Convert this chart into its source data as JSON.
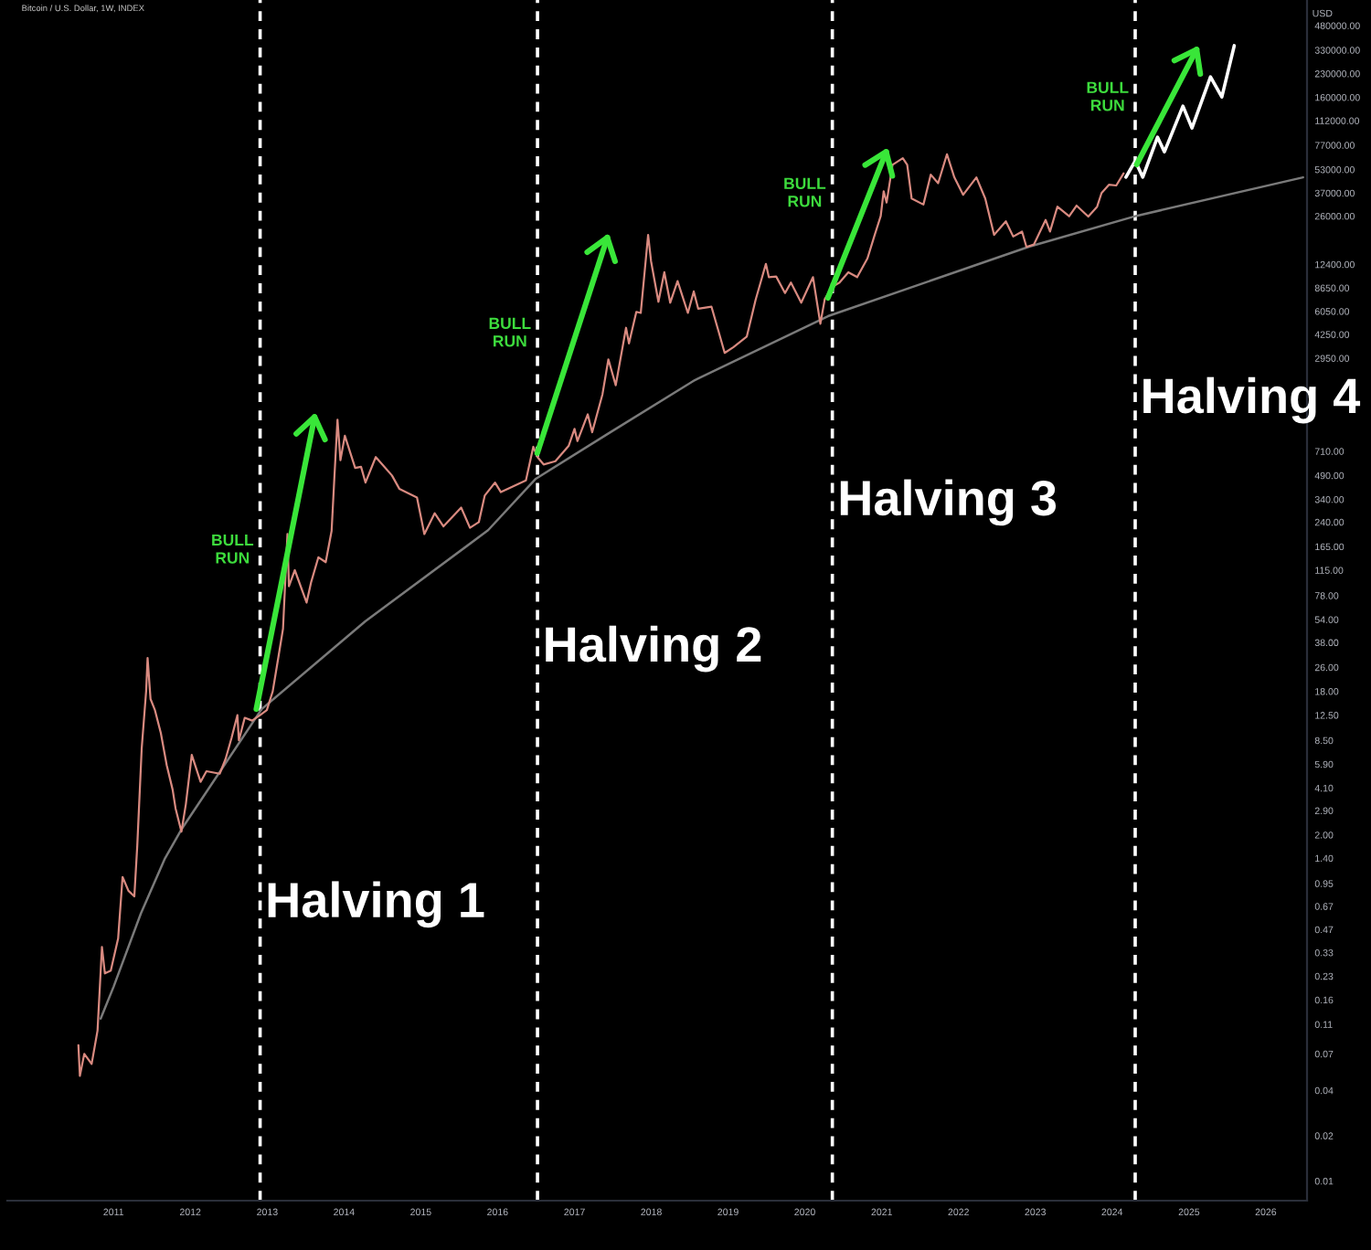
{
  "chart_data": {
    "type": "line",
    "title": "Bitcoin / U.S. Dollar, 1W, INDEX",
    "ylabel": "USD",
    "log": true,
    "xlim": [
      "2009-08-14",
      "2026-07-16"
    ],
    "xticks": [
      "2011",
      "2012",
      "2013",
      "2014",
      "2015",
      "2016",
      "2017",
      "2018",
      "2019",
      "2020",
      "2021",
      "2022",
      "2023",
      "2024",
      "2025",
      "2026"
    ],
    "ylim": [
      0.0074,
      710000
    ],
    "yticks": [
      {
        "value": 480000,
        "label": "480000.00"
      },
      {
        "value": 330000,
        "label": "330000.00"
      },
      {
        "value": 230000,
        "label": "230000.00"
      },
      {
        "value": 160000,
        "label": "160000.00"
      },
      {
        "value": 112000,
        "label": "112000.00"
      },
      {
        "value": 77000,
        "label": "77000.00"
      },
      {
        "value": 53000,
        "label": "53000.00"
      },
      {
        "value": 37000,
        "label": "37000.00"
      },
      {
        "value": 26000,
        "label": "26000.00"
      },
      {
        "value": 12400,
        "label": "12400.00"
      },
      {
        "value": 8650,
        "label": "8650.00"
      },
      {
        "value": 6050,
        "label": "6050.00"
      },
      {
        "value": 4250,
        "label": "4250.00"
      },
      {
        "value": 2950,
        "label": "2950.00"
      },
      {
        "value": 710,
        "label": "710.00"
      },
      {
        "value": 490,
        "label": "490.00"
      },
      {
        "value": 340,
        "label": "340.00"
      },
      {
        "value": 240,
        "label": "240.00"
      },
      {
        "value": 165,
        "label": "165.00"
      },
      {
        "value": 115,
        "label": "115.00"
      },
      {
        "value": 78,
        "label": "78.00"
      },
      {
        "value": 54,
        "label": "54.00"
      },
      {
        "value": 38,
        "label": "38.00"
      },
      {
        "value": 26,
        "label": "26.00"
      },
      {
        "value": 18,
        "label": "18.00"
      },
      {
        "value": 12.5,
        "label": "12.50"
      },
      {
        "value": 8.5,
        "label": "8.50"
      },
      {
        "value": 5.9,
        "label": "5.90"
      },
      {
        "value": 4.1,
        "label": "4.10"
      },
      {
        "value": 2.9,
        "label": "2.90"
      },
      {
        "value": 2,
        "label": "2.00"
      },
      {
        "value": 1.4,
        "label": "1.40"
      },
      {
        "value": 0.95,
        "label": "0.95"
      },
      {
        "value": 0.67,
        "label": "0.67"
      },
      {
        "value": 0.47,
        "label": "0.47"
      },
      {
        "value": 0.33,
        "label": "0.33"
      },
      {
        "value": 0.23,
        "label": "0.23"
      },
      {
        "value": 0.16,
        "label": "0.16"
      },
      {
        "value": 0.11,
        "label": "0.11"
      },
      {
        "value": 0.07,
        "label": "0.07"
      },
      {
        "value": 0.04,
        "label": "0.04"
      },
      {
        "value": 0.02,
        "label": "0.02"
      },
      {
        "value": 0.01,
        "label": "0.01"
      }
    ],
    "series": [
      {
        "color": "#d98a80",
        "x": [
          "2010-07-18",
          "2010-07-25",
          "2010-08-15",
          "2010-09-19",
          "2010-10-17",
          "2010-11-07",
          "2010-11-21",
          "2010-12-19",
          "2011-01-23",
          "2011-02-13",
          "2011-03-13",
          "2011-04-10",
          "2011-04-24",
          "2011-05-15",
          "2011-06-05",
          "2011-06-12",
          "2011-06-26",
          "2011-07-17",
          "2011-08-14",
          "2011-09-11",
          "2011-10-09",
          "2011-10-23",
          "2011-11-20",
          "2011-12-11",
          "2012-01-08",
          "2012-02-19",
          "2012-03-18",
          "2012-05-20",
          "2012-06-17",
          "2012-07-15",
          "2012-08-12",
          "2012-08-19",
          "2012-09-16",
          "2012-10-21",
          "2012-11-28",
          "2012-12-30",
          "2013-01-27",
          "2013-02-24",
          "2013-03-17",
          "2013-04-07",
          "2013-04-14",
          "2013-05-12",
          "2013-07-07",
          "2013-07-28",
          "2013-09-01",
          "2013-10-06",
          "2013-11-03",
          "2013-11-17",
          "2013-12-01",
          "2013-12-15",
          "2014-01-05",
          "2014-02-23",
          "2014-03-23",
          "2014-04-13",
          "2014-06-01",
          "2014-08-17",
          "2014-09-21",
          "2014-12-14",
          "2015-01-18",
          "2015-03-08",
          "2015-04-19",
          "2015-07-12",
          "2015-08-23",
          "2015-10-04",
          "2015-11-01",
          "2015-12-20",
          "2016-01-17",
          "2016-05-15",
          "2016-06-19",
          "2016-07-09",
          "2016-08-07",
          "2016-10-02",
          "2016-12-04",
          "2017-01-01",
          "2017-01-15",
          "2017-03-05",
          "2017-03-26",
          "2017-05-14",
          "2017-06-11",
          "2017-07-16",
          "2017-09-03",
          "2017-09-17",
          "2017-10-22",
          "2017-11-12",
          "2017-12-17",
          "2017-12-31",
          "2018-02-04",
          "2018-03-04",
          "2018-04-01",
          "2018-05-06",
          "2018-06-24",
          "2018-07-22",
          "2018-08-12",
          "2018-10-14",
          "2018-11-18",
          "2018-12-16",
          "2019-01-27",
          "2019-03-31",
          "2019-05-12",
          "2019-06-30",
          "2019-07-14",
          "2019-08-18",
          "2019-09-29",
          "2019-10-27",
          "2019-12-15",
          "2020-02-09",
          "2020-03-15",
          "2020-04-05",
          "2020-05-11",
          "2020-06-14",
          "2020-07-26",
          "2020-09-06",
          "2020-10-25",
          "2020-11-29",
          "2020-12-27",
          "2021-01-10",
          "2021-01-24",
          "2021-02-21",
          "2021-04-11",
          "2021-05-02",
          "2021-05-23",
          "2021-07-18",
          "2021-08-22",
          "2021-09-26",
          "2021-11-07",
          "2021-12-12",
          "2022-01-23",
          "2022-03-27",
          "2022-05-08",
          "2022-06-19",
          "2022-08-14",
          "2022-09-18",
          "2022-10-30",
          "2022-11-20",
          "2022-12-25",
          "2023-02-19",
          "2023-03-12",
          "2023-04-16",
          "2023-06-11",
          "2023-07-16",
          "2023-09-10",
          "2023-10-22",
          "2023-11-12",
          "2023-12-17",
          "2024-01-21",
          "2024-02-25"
        ],
        "values": [
          0.08,
          0.05,
          0.07,
          0.06,
          0.1,
          0.36,
          0.24,
          0.25,
          0.41,
          1.05,
          0.85,
          0.78,
          1.7,
          7.5,
          18,
          30,
          16,
          13.5,
          9.5,
          5.8,
          4,
          3,
          2.1,
          3.2,
          6.8,
          4.5,
          5.3,
          5.1,
          6.4,
          8.8,
          12.5,
          8.5,
          12,
          11.5,
          12.5,
          13.5,
          18,
          31,
          47,
          200,
          90,
          115,
          70,
          95,
          140,
          130,
          210,
          500,
          1150,
          620,
          900,
          550,
          560,
          440,
          650,
          490,
          400,
          350,
          200,
          275,
          225,
          300,
          220,
          240,
          360,
          440,
          380,
          455,
          760,
          650,
          580,
          610,
          770,
          1000,
          830,
          1250,
          950,
          1700,
          2900,
          1950,
          4700,
          3700,
          6000,
          5900,
          19500,
          13000,
          7000,
          11000,
          6900,
          9600,
          5900,
          8200,
          6300,
          6500,
          4400,
          3200,
          3500,
          4100,
          7200,
          12500,
          10200,
          10300,
          8000,
          9400,
          6900,
          10200,
          5000,
          7300,
          8800,
          9400,
          11000,
          10200,
          13600,
          19600,
          26000,
          38000,
          32000,
          57000,
          63000,
          57000,
          34000,
          31000,
          49000,
          43000,
          67000,
          47000,
          36000,
          47000,
          34000,
          19500,
          24000,
          19000,
          20500,
          16200,
          16800,
          24500,
          20500,
          30000,
          25900,
          30500,
          25800,
          30000,
          37000,
          42000,
          41500,
          50000
        ]
      },
      {
        "color": "#ffffff",
        "x": [
          "2024-03-07",
          "2024-04-20",
          "2024-05-26",
          "2024-08-04",
          "2024-09-06",
          "2024-12-03",
          "2025-01-15",
          "2025-04-13",
          "2025-06-06",
          "2025-08-04"
        ],
        "values": [
          47100,
          60500,
          47100,
          87000,
          69500,
          140000,
          100000,
          219000,
          161000,
          353000
        ]
      },
      {
        "color": "#7a7a7a",
        "x": [
          "2010-11-01",
          "2011-01-01",
          "2011-05-11",
          "2011-09-01",
          "2011-11-24",
          "2012-12-05",
          "2014-04-12",
          "2015-11-17",
          "2016-07-01",
          "2017-06-13",
          "2018-07-27",
          "2020-04-20",
          "2022-12-02",
          "2024-04-27",
          "2026-06-27"
        ],
        "values": [
          0.12,
          0.195,
          0.6,
          1.38,
          2.22,
          13.7,
          52.5,
          212,
          466,
          936,
          2109,
          5614,
          16270,
          26100,
          47000
        ]
      },
      {
        "color": "#39e639",
        "x": [
          "2012-11-10",
          "2013-08-14"
        ],
        "values": [
          13.7,
          1200
        ]
      },
      {
        "color": "#39e639",
        "x": [
          "2016-07-08",
          "2017-06-06"
        ],
        "values": [
          690,
          18700
        ]
      },
      {
        "color": "#39e639",
        "x": [
          "2020-04-20",
          "2021-01-22"
        ],
        "values": [
          7430,
          69500
        ]
      },
      {
        "color": "#39e639",
        "x": [
          "2024-04-27",
          "2025-02-06"
        ],
        "values": [
          57200,
          333000
        ]
      }
    ],
    "ref_lines": [
      {
        "axis": "x",
        "value": "2012-11-28",
        "color": "#ffffff",
        "line_style": "dashed"
      },
      {
        "axis": "x",
        "value": "2016-07-09",
        "color": "#ffffff",
        "line_style": "dashed"
      },
      {
        "axis": "x",
        "value": "2020-05-11",
        "color": "#ffffff",
        "line_style": "dashed"
      },
      {
        "axis": "x",
        "value": "2024-04-20",
        "color": "#ffffff",
        "line_style": "dashed"
      }
    ],
    "annotations": [
      {
        "text": "Halving 1",
        "x": "2012-11-28",
        "y": 0.69
      },
      {
        "text": "Halving 2",
        "x": "2016-07-09",
        "y": 34.5
      },
      {
        "text": "Halving 3",
        "x": "2020-05-11",
        "y": 324
      },
      {
        "text": "Halving 4",
        "x": "2024-04-20",
        "y": 1550
      },
      {
        "text": "BULL\nRUN",
        "x": "2012-11-28",
        "y": 156
      },
      {
        "text": "BULL\nRUN",
        "x": "2016-07-09",
        "y": 4300
      },
      {
        "text": "BULL\nRUN",
        "x": "2020-05-11",
        "y": 36600
      },
      {
        "text": "BULL\nRUN",
        "x": "2024-04-20",
        "y": 159000
      }
    ]
  }
}
